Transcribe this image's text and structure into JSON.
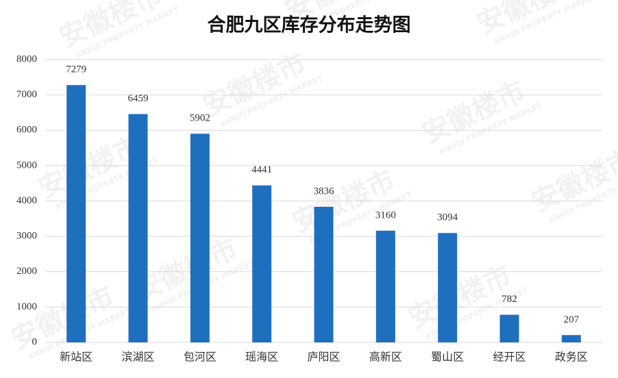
{
  "chart_data": {
    "type": "bar",
    "title": "合肥九区库存分布走势图",
    "categories": [
      "新站区",
      "滨湖区",
      "包河区",
      "瑶海区",
      "庐阳区",
      "高新区",
      "蜀山区",
      "经开区",
      "政务区"
    ],
    "values": [
      7279,
      6459,
      5902,
      4441,
      3836,
      3160,
      3094,
      782,
      207
    ],
    "color": "#1f6fbf",
    "ylim": [
      0,
      8000
    ],
    "yticks": [
      0,
      1000,
      2000,
      3000,
      4000,
      5000,
      6000,
      7000,
      8000
    ],
    "grid": true,
    "watermark": "安徽楼市",
    "watermark_subtitle": "ANHUI PROPERTY MARKET"
  }
}
